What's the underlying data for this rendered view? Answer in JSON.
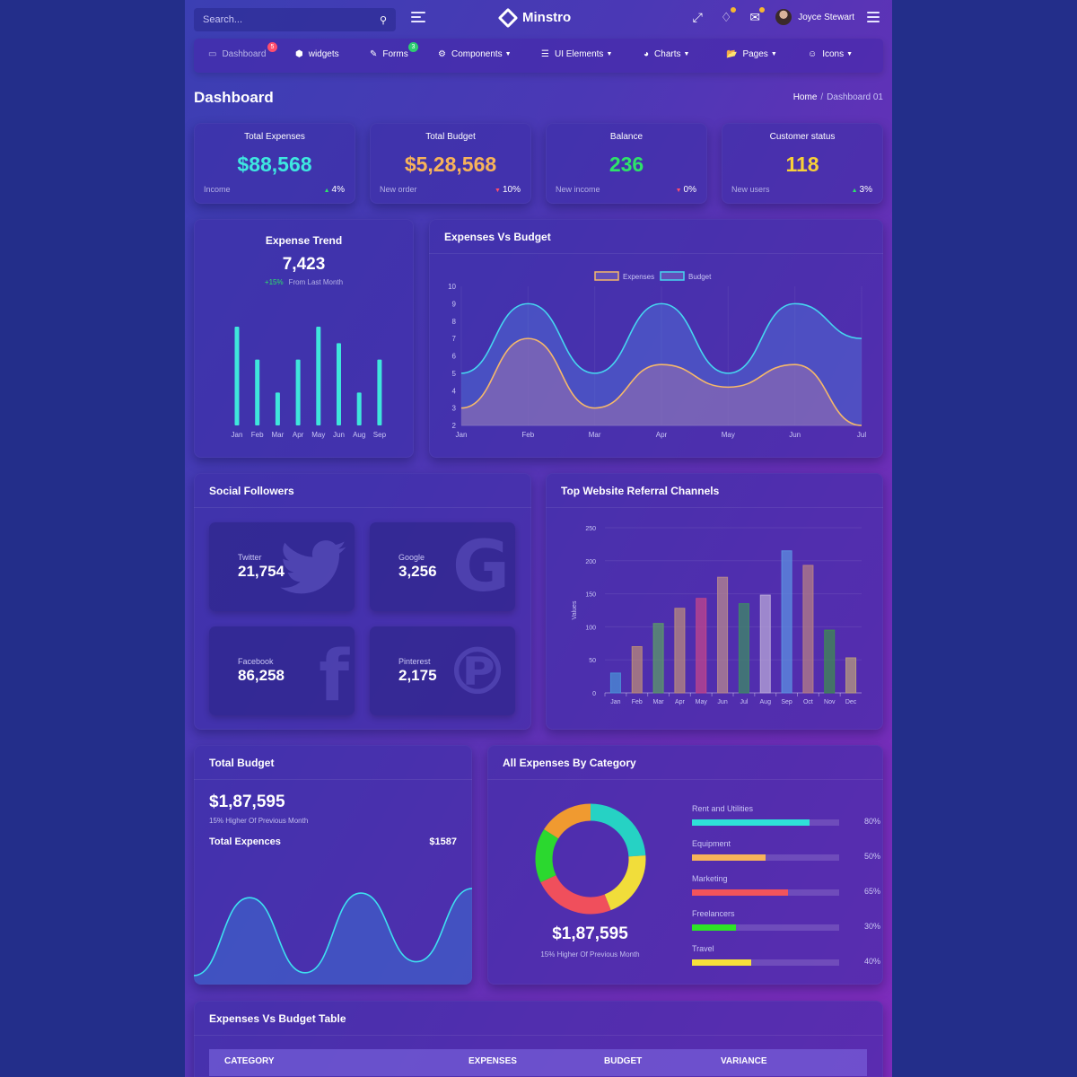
{
  "search": {
    "placeholder": "Search..."
  },
  "brand": {
    "name": "Minstro"
  },
  "user": {
    "name": "Joyce Stewart"
  },
  "nav": [
    {
      "label": "Dashboard",
      "icon": "laptop-icon",
      "badge": "5",
      "badge_color": "#ff4d6d",
      "dropdown": false
    },
    {
      "label": "widgets",
      "icon": "cube-icon",
      "badge": null,
      "dropdown": false
    },
    {
      "label": "Forms",
      "icon": "edit-icon",
      "badge": "3",
      "badge_color": "#2ecc71",
      "dropdown": false
    },
    {
      "label": "Components",
      "icon": "cogs-icon",
      "badge": null,
      "dropdown": true
    },
    {
      "label": "UI Elements",
      "icon": "list-icon",
      "badge": null,
      "dropdown": true
    },
    {
      "label": "Charts",
      "icon": "pie-chart-icon",
      "badge": null,
      "dropdown": true
    },
    {
      "label": "Pages",
      "icon": "folder-open-icon",
      "badge": null,
      "dropdown": true
    },
    {
      "label": "Icons",
      "icon": "smile-icon",
      "badge": null,
      "dropdown": true
    }
  ],
  "page": {
    "title": "Dashboard"
  },
  "breadcrumb": {
    "home": "Home",
    "separator": "/",
    "current": "Dashboard 01"
  },
  "stats": [
    {
      "label": "Total Expenses",
      "value": "$88,568",
      "color": "#3ee8e0",
      "sub": "Income",
      "pct": "4%",
      "trend": "up"
    },
    {
      "label": "Total Budget",
      "value": "$5,28,568",
      "color": "#f7b35a",
      "sub": "New order",
      "pct": "10%",
      "trend": "down"
    },
    {
      "label": "Balance",
      "value": "236",
      "color": "#2ee36a",
      "sub": "New income",
      "pct": "0%",
      "trend": "down"
    },
    {
      "label": "Customer status",
      "value": "118",
      "color": "#f7d038",
      "sub": "New users",
      "pct": "3%",
      "trend": "up"
    }
  ],
  "expense_trend": {
    "title": "Expense Trend",
    "value": "7,423",
    "change": "+15%",
    "change_note": "From Last Month"
  },
  "social": {
    "title": "Social Followers",
    "items": [
      {
        "name": "Twitter",
        "value": "21,754",
        "icon": "twitter-icon"
      },
      {
        "name": "Google",
        "value": "3,256",
        "icon": "google-icon"
      },
      {
        "name": "Facebook",
        "value": "86,258",
        "icon": "facebook-icon"
      },
      {
        "name": "Pinterest",
        "value": "2,175",
        "icon": "pinterest-icon"
      }
    ]
  },
  "total_budget": {
    "title": "Total Budget",
    "amount": "$1,87,595",
    "note": "15% Higher Of Previous Month",
    "row_label": "Total Expences",
    "row_value": "$1587"
  },
  "expenses_by_category": {
    "title": "All Expenses By Category",
    "amount": "$1,87,595",
    "note": "15% Higher Of Previous Month",
    "items": [
      {
        "name": "Rent and Utilities",
        "pct": "80%",
        "value": 0.8,
        "color": "#2fe0d8"
      },
      {
        "name": "Equipment",
        "pct": "50%",
        "value": 0.5,
        "color": "#f7b35a"
      },
      {
        "name": "Marketing",
        "pct": "65%",
        "value": 0.65,
        "color": "#f2545b"
      },
      {
        "name": "Freelancers",
        "pct": "30%",
        "value": 0.3,
        "color": "#2ee326"
      },
      {
        "name": "Travel",
        "pct": "40%",
        "value": 0.4,
        "color": "#f7e03a"
      }
    ]
  },
  "table": {
    "title": "Expenses Vs Budget Table",
    "columns": [
      "CATEGORY",
      "EXPENSES",
      "BUDGET",
      "VARIANCE"
    ]
  },
  "chart_data": [
    {
      "type": "bar",
      "name": "expense-trend",
      "categories": [
        "Jan",
        "Feb",
        "Mar",
        "Apr",
        "May",
        "Jun",
        "Aug",
        "Sep"
      ],
      "values": [
        9,
        6,
        3,
        6,
        9,
        7.5,
        3,
        6
      ],
      "color": "#3fe6dc"
    },
    {
      "type": "area",
      "title": "Expenses Vs Budget",
      "categories": [
        "Jan",
        "Feb",
        "Mar",
        "Apr",
        "May",
        "Jun",
        "Jul"
      ],
      "ylim": [
        2,
        10
      ],
      "yticks": [
        2,
        3,
        4,
        5,
        6,
        7,
        8,
        9,
        10
      ],
      "legend": "top",
      "series": [
        {
          "name": "Expenses",
          "values": [
            3,
            7,
            3,
            5.5,
            4.2,
            5.5,
            2
          ],
          "color": "#f5b86a"
        },
        {
          "name": "Budget",
          "values": [
            5,
            9,
            5,
            9,
            5,
            9,
            7
          ],
          "color": "#46d6f0"
        }
      ]
    },
    {
      "type": "bar",
      "title": "Top Website Referral Channels",
      "ylabel": "Values",
      "categories": [
        "Jan",
        "Feb",
        "Mar",
        "Apr",
        "May",
        "Jun",
        "Jul",
        "Aug",
        "Sep",
        "Oct",
        "Nov",
        "Dec"
      ],
      "ylim": [
        0,
        250
      ],
      "yticks": [
        0,
        50,
        100,
        150,
        200,
        250
      ],
      "series": [
        {
          "values": [
            30,
            70,
            105,
            128,
            143,
            175,
            135,
            148,
            215,
            193,
            95,
            53
          ],
          "pairs": [
            [
              [
                75,
                150,
                220
              ],
              [
                75,
                140,
                220
              ]
            ],
            null
          ]
        }
      ],
      "colors": [
        "#4a8fd6",
        "#b98a7a",
        "#5b9a68",
        "#b78a7e",
        "#c0458c",
        "#b5878f",
        "#3e8a66",
        "#b7a6d7",
        "#5c8fe0",
        "#b47e86",
        "#3f8a52",
        "#b69a7e"
      ]
    },
    {
      "type": "area",
      "name": "total-budget",
      "values": [
        0.05,
        0.9,
        0.08,
        0.95,
        0.2,
        1.0
      ],
      "color": "#3ee0f0"
    },
    {
      "type": "pie",
      "name": "expenses-by-category-donut",
      "slices": [
        {
          "value": 24,
          "color": "#26d2c4"
        },
        {
          "value": 20,
          "color": "#f1dd3a"
        },
        {
          "value": 24,
          "color": "#f04f5c"
        },
        {
          "value": 16,
          "color": "#2bd82f"
        },
        {
          "value": 16,
          "color": "#f09a30"
        }
      ]
    }
  ]
}
